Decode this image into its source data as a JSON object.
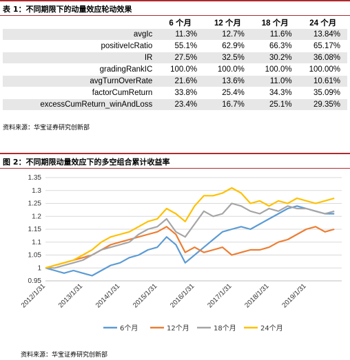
{
  "table1": {
    "title": "表 1：不同期限下的动量效应轮动效果",
    "columns": [
      "6 个月",
      "12 个月",
      "18 个月",
      "24 个月"
    ],
    "rows": [
      {
        "name": "avgIc",
        "values": [
          "11.3%",
          "12.7%",
          "11.6%",
          "13.84%"
        ]
      },
      {
        "name": "positiveIcRatio",
        "values": [
          "55.1%",
          "62.9%",
          "66.3%",
          "65.17%"
        ]
      },
      {
        "name": "IR",
        "values": [
          "27.5%",
          "32.5%",
          "30.2%",
          "36.08%"
        ]
      },
      {
        "name": "gradingRankIC",
        "values": [
          "100.0%",
          "100.0%",
          "100.0%",
          "100.00%"
        ]
      },
      {
        "name": "avgTurnOverRate",
        "values": [
          "21.6%",
          "13.6%",
          "11.0%",
          "10.61%"
        ]
      },
      {
        "name": "factorCumReturn",
        "values": [
          "33.8%",
          "25.4%",
          "34.3%",
          "35.09%"
        ]
      },
      {
        "name": "excessCumReturn_winAndLoss",
        "values": [
          "23.4%",
          "16.7%",
          "25.1%",
          "29.35%"
        ]
      }
    ],
    "source": "资料来源：华宝证券研究创新部"
  },
  "chart2": {
    "title": "图 2：不同期限动量效应下的多空组合累计收益率",
    "source": "资料来源：华宝证券研究创新部"
  },
  "chart_data": {
    "type": "line",
    "x": [
      2012.0,
      2012.25,
      2012.5,
      2012.75,
      2013.0,
      2013.25,
      2013.5,
      2013.75,
      2014.0,
      2014.25,
      2014.5,
      2014.75,
      2015.0,
      2015.25,
      2015.5,
      2015.75,
      2016.0,
      2016.25,
      2016.5,
      2016.75,
      2017.0,
      2017.25,
      2017.5,
      2017.75,
      2018.0,
      2018.25,
      2018.5,
      2018.75,
      2019.0,
      2019.25,
      2019.5,
      2019.75
    ],
    "x_tick_labels": [
      "2012/1/31",
      "2013/1/31",
      "2014/1/31",
      "2015/1/31",
      "2016/1/31",
      "2017/1/31",
      "2018/1/31",
      "2019/1/31"
    ],
    "x_ticks": [
      2012,
      2013,
      2014,
      2015,
      2016,
      2017,
      2018,
      2019
    ],
    "ylim": [
      0.95,
      1.35
    ],
    "y_ticks": [
      0.95,
      1.0,
      1.05,
      1.1,
      1.15,
      1.2,
      1.25,
      1.3,
      1.35
    ],
    "y_tick_labels": [
      "0.95",
      "1",
      "1.05",
      "1.1",
      "1.15",
      "1.2",
      "1.25",
      "1.3",
      "1.35"
    ],
    "grid": "horizontal",
    "legend_position": "bottom",
    "series": [
      {
        "name": "6个月",
        "color": "#5b9bd5",
        "values": [
          1.0,
          0.99,
          0.98,
          0.99,
          0.98,
          0.97,
          0.99,
          1.01,
          1.02,
          1.04,
          1.05,
          1.07,
          1.08,
          1.12,
          1.09,
          1.02,
          1.05,
          1.08,
          1.11,
          1.14,
          1.15,
          1.16,
          1.15,
          1.17,
          1.19,
          1.21,
          1.23,
          1.24,
          1.23,
          1.22,
          1.21,
          1.21
        ]
      },
      {
        "name": "12个月",
        "color": "#ed7d31",
        "values": [
          1.0,
          1.01,
          1.02,
          1.03,
          1.04,
          1.05,
          1.07,
          1.09,
          1.1,
          1.11,
          1.12,
          1.13,
          1.14,
          1.16,
          1.13,
          1.06,
          1.08,
          1.06,
          1.07,
          1.08,
          1.05,
          1.06,
          1.07,
          1.07,
          1.08,
          1.1,
          1.11,
          1.13,
          1.15,
          1.16,
          1.14,
          1.15
        ]
      },
      {
        "name": "18个月",
        "color": "#a5a5a5",
        "values": [
          1.0,
          1.0,
          1.01,
          1.02,
          1.03,
          1.05,
          1.07,
          1.08,
          1.09,
          1.1,
          1.13,
          1.15,
          1.16,
          1.19,
          1.14,
          1.12,
          1.17,
          1.22,
          1.2,
          1.21,
          1.25,
          1.24,
          1.22,
          1.21,
          1.23,
          1.22,
          1.24,
          1.23,
          1.23,
          1.22,
          1.21,
          1.22
        ]
      },
      {
        "name": "24个月",
        "color": "#ffc000",
        "values": [
          1.0,
          1.01,
          1.02,
          1.03,
          1.05,
          1.07,
          1.1,
          1.12,
          1.13,
          1.14,
          1.16,
          1.18,
          1.19,
          1.23,
          1.21,
          1.18,
          1.24,
          1.28,
          1.28,
          1.29,
          1.31,
          1.29,
          1.25,
          1.26,
          1.24,
          1.26,
          1.25,
          1.27,
          1.26,
          1.25,
          1.26,
          1.27
        ]
      }
    ]
  }
}
